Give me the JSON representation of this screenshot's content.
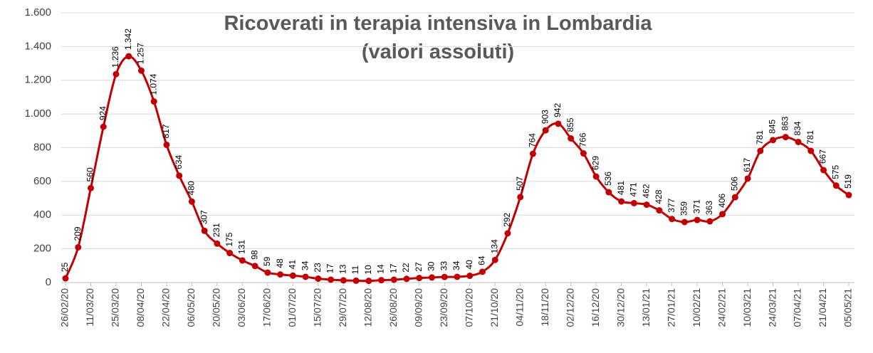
{
  "chart_data": {
    "type": "line",
    "title": "Ricoverati in terapia intensiva in Lombardia",
    "subtitle": "(valori assoluti)",
    "categories": [
      "26/02/20",
      null,
      "11/03/20",
      null,
      "25/03/20",
      null,
      "08/04/20",
      null,
      "22/04/20",
      null,
      "06/05/20",
      null,
      "20/05/20",
      null,
      "03/06/20",
      null,
      "17/06/20",
      null,
      "01/07/20",
      null,
      "15/07/20",
      null,
      "29/07/20",
      null,
      "12/08/20",
      null,
      "26/08/20",
      null,
      "09/09/20",
      null,
      "23/09/20",
      null,
      "07/10/20",
      null,
      "21/10/20",
      null,
      "04/11/20",
      null,
      "18/11/20",
      null,
      "02/12/20",
      null,
      "16/12/20",
      null,
      "30/12/20",
      null,
      "13/01/21",
      null,
      "27/01/21",
      null,
      "10/02/21",
      null,
      "24/02/21",
      null,
      "10/03/21",
      null,
      "24/03/21",
      null,
      "07/04/21",
      null,
      "21/04/21",
      null,
      "05/05/21"
    ],
    "values": [
      25,
      209,
      560,
      924,
      1236,
      1342,
      1257,
      1074,
      817,
      634,
      480,
      307,
      231,
      175,
      131,
      98,
      59,
      48,
      41,
      34,
      23,
      17,
      13,
      11,
      10,
      14,
      17,
      22,
      27,
      30,
      33,
      34,
      40,
      64,
      134,
      292,
      507,
      764,
      903,
      942,
      855,
      766,
      629,
      536,
      481,
      471,
      462,
      428,
      377,
      359,
      371,
      363,
      406,
      506,
      617,
      781,
      845,
      863,
      834,
      781,
      667,
      575,
      519
    ],
    "value_labels": [
      "25",
      "209",
      "560",
      "924",
      "1.236",
      "1.342",
      "1.257",
      "1.074",
      "817",
      "634",
      "480",
      "307",
      "231",
      "175",
      "131",
      "98",
      "59",
      "48",
      "41",
      "34",
      "23",
      "17",
      "13",
      "11",
      "10",
      "14",
      "17",
      "22",
      "27",
      "30",
      "33",
      "34",
      "40",
      "64",
      "134",
      "292",
      "507",
      "764",
      "903",
      "942",
      "855",
      "766",
      "629",
      "536",
      "481",
      "471",
      "462",
      "428",
      "377",
      "359",
      "371",
      "363",
      "406",
      "506",
      "617",
      "781",
      "845",
      "863",
      "834",
      "781",
      "667",
      "575",
      "519"
    ],
    "color": "#c00000",
    "ylim": [
      0,
      1600
    ],
    "yticks": [
      0,
      200,
      400,
      600,
      800,
      {
        "value": 1000,
        "label": "1.000"
      },
      {
        "value": 1200,
        "label": "1.200"
      },
      {
        "value": 1400,
        "label": "1.400"
      },
      {
        "value": 1600,
        "label": "1.600"
      }
    ],
    "grid": true
  }
}
